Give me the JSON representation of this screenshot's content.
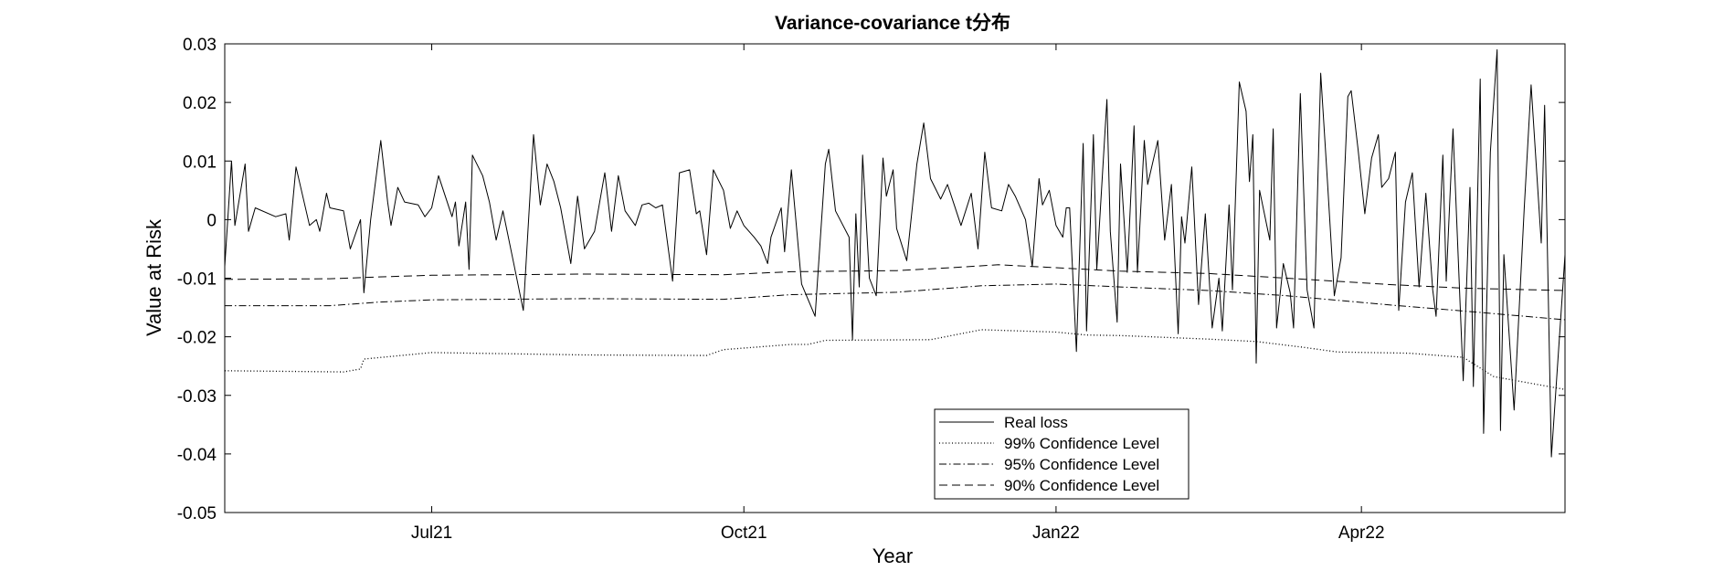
{
  "chart_data": {
    "type": "line",
    "title": "Variance-covariance t分布",
    "xlabel": "Year",
    "ylabel": "Value at Risk",
    "x_range": [
      "2021-05-01",
      "2022-05-31"
    ],
    "xticks": [
      {
        "date": "2021-07-01",
        "label": "Jul21"
      },
      {
        "date": "2021-10-01",
        "label": "Oct21"
      },
      {
        "date": "2022-01-01",
        "label": "Jan22"
      },
      {
        "date": "2022-04-01",
        "label": "Apr22"
      }
    ],
    "ylim": [
      -0.05,
      0.03
    ],
    "yticks": [
      {
        "value": 0.03,
        "label": "0.03"
      },
      {
        "value": 0.02,
        "label": "0.02"
      },
      {
        "value": 0.01,
        "label": "0.01"
      },
      {
        "value": 0,
        "label": "0"
      },
      {
        "value": -0.01,
        "label": "-0.01"
      },
      {
        "value": -0.02,
        "label": "-0.02"
      },
      {
        "value": -0.03,
        "label": "-0.03"
      },
      {
        "value": -0.04,
        "label": "-0.04"
      },
      {
        "value": -0.05,
        "label": "-0.05"
      }
    ],
    "grid": false,
    "legend_position": "bottom-center",
    "colors": {
      "line": "#000000",
      "axis": "#000000",
      "background": "#ffffff"
    },
    "series": [
      {
        "name": "Real loss",
        "style": "solid",
        "points": [
          [
            "2021-05-01",
            -0.008
          ],
          [
            "2021-05-03",
            0.01
          ],
          [
            "2021-05-04",
            -0.001
          ],
          [
            "2021-05-07",
            0.0095
          ],
          [
            "2021-05-08",
            -0.002
          ],
          [
            "2021-05-10",
            0.002
          ],
          [
            "2021-05-16",
            0.0005
          ],
          [
            "2021-05-19",
            0.001
          ],
          [
            "2021-05-20",
            -0.0035
          ],
          [
            "2021-05-22",
            0.009
          ],
          [
            "2021-05-26",
            -0.001
          ],
          [
            "2021-05-28",
            0.0
          ],
          [
            "2021-05-29",
            -0.002
          ],
          [
            "2021-05-31",
            0.0045
          ],
          [
            "2021-06-01",
            0.002
          ],
          [
            "2021-06-05",
            0.0015
          ],
          [
            "2021-06-07",
            -0.005
          ],
          [
            "2021-06-10",
            0.0
          ],
          [
            "2021-06-11",
            -0.0125
          ],
          [
            "2021-06-13",
            0.0
          ],
          [
            "2021-06-16",
            0.0135
          ],
          [
            "2021-06-18",
            0.003
          ],
          [
            "2021-06-19",
            -0.001
          ],
          [
            "2021-06-21",
            0.0055
          ],
          [
            "2021-06-23",
            0.003
          ],
          [
            "2021-06-27",
            0.0025
          ],
          [
            "2021-06-29",
            0.0005
          ],
          [
            "2021-07-01",
            0.002
          ],
          [
            "2021-07-03",
            0.0075
          ],
          [
            "2021-07-07",
            0.0005
          ],
          [
            "2021-07-08",
            0.003
          ],
          [
            "2021-07-09",
            -0.0045
          ],
          [
            "2021-07-11",
            0.003
          ],
          [
            "2021-07-12",
            -0.0085
          ],
          [
            "2021-07-13",
            0.011
          ],
          [
            "2021-07-16",
            0.0075
          ],
          [
            "2021-07-18",
            0.003
          ],
          [
            "2021-07-20",
            -0.0035
          ],
          [
            "2021-07-22",
            0.0015
          ],
          [
            "2021-07-25",
            -0.007
          ],
          [
            "2021-07-28",
            -0.0155
          ],
          [
            "2021-07-31",
            0.0145
          ],
          [
            "2021-08-02",
            0.0025
          ],
          [
            "2021-08-04",
            0.0095
          ],
          [
            "2021-08-06",
            0.0065
          ],
          [
            "2021-08-08",
            0.002
          ],
          [
            "2021-08-11",
            -0.0075
          ],
          [
            "2021-08-13",
            0.004
          ],
          [
            "2021-08-15",
            -0.005
          ],
          [
            "2021-08-18",
            -0.002
          ],
          [
            "2021-08-21",
            0.008
          ],
          [
            "2021-08-23",
            -0.002
          ],
          [
            "2021-08-25",
            0.0075
          ],
          [
            "2021-08-27",
            0.0015
          ],
          [
            "2021-08-30",
            -0.001
          ],
          [
            "2021-09-01",
            0.0025
          ],
          [
            "2021-09-03",
            0.0028
          ],
          [
            "2021-09-05",
            0.002
          ],
          [
            "2021-09-07",
            0.0025
          ],
          [
            "2021-09-10",
            -0.0105
          ],
          [
            "2021-09-12",
            0.008
          ],
          [
            "2021-09-15",
            0.0085
          ],
          [
            "2021-09-17",
            0.001
          ],
          [
            "2021-09-18",
            0.0015
          ],
          [
            "2021-09-20",
            -0.006
          ],
          [
            "2021-09-22",
            0.0085
          ],
          [
            "2021-09-25",
            0.005
          ],
          [
            "2021-09-27",
            -0.0015
          ],
          [
            "2021-09-29",
            0.0015
          ],
          [
            "2021-10-01",
            -0.001
          ],
          [
            "2021-10-04",
            -0.003
          ],
          [
            "2021-10-06",
            -0.0045
          ],
          [
            "2021-10-08",
            -0.0075
          ],
          [
            "2021-10-09",
            -0.003
          ],
          [
            "2021-10-12",
            0.002
          ],
          [
            "2021-10-13",
            -0.0055
          ],
          [
            "2021-10-15",
            0.0085
          ],
          [
            "2021-10-18",
            -0.011
          ],
          [
            "2021-10-22",
            -0.0165
          ],
          [
            "2021-10-25",
            0.0095
          ],
          [
            "2021-10-26",
            0.012
          ],
          [
            "2021-10-28",
            0.0015
          ],
          [
            "2021-11-01",
            -0.003
          ],
          [
            "2021-11-02",
            -0.0205
          ],
          [
            "2021-11-03",
            0.001
          ],
          [
            "2021-11-04",
            -0.0115
          ],
          [
            "2021-11-05",
            0.011
          ],
          [
            "2021-11-07",
            -0.01
          ],
          [
            "2021-11-09",
            -0.013
          ],
          [
            "2021-11-11",
            0.0105
          ],
          [
            "2021-11-12",
            0.004
          ],
          [
            "2021-11-14",
            0.0085
          ],
          [
            "2021-11-15",
            -0.0015
          ],
          [
            "2021-11-18",
            -0.007
          ],
          [
            "2021-11-21",
            0.0095
          ],
          [
            "2021-11-23",
            0.0165
          ],
          [
            "2021-11-25",
            0.007
          ],
          [
            "2021-11-28",
            0.0035
          ],
          [
            "2021-11-30",
            0.006
          ],
          [
            "2021-12-02",
            0.0025
          ],
          [
            "2021-12-04",
            -0.001
          ],
          [
            "2021-12-07",
            0.0045
          ],
          [
            "2021-12-09",
            -0.005
          ],
          [
            "2021-12-11",
            0.0115
          ],
          [
            "2021-12-13",
            0.002
          ],
          [
            "2021-12-16",
            0.0015
          ],
          [
            "2021-12-18",
            0.006
          ],
          [
            "2021-12-20",
            0.004
          ],
          [
            "2021-12-23",
            0.0
          ],
          [
            "2021-12-25",
            -0.008
          ],
          [
            "2021-12-27",
            0.007
          ],
          [
            "2021-12-28",
            0.0025
          ],
          [
            "2021-12-30",
            0.005
          ],
          [
            "2022-01-01",
            -0.001
          ],
          [
            "2022-01-03",
            -0.003
          ],
          [
            "2022-01-04",
            0.002
          ],
          [
            "2022-01-05",
            0.002
          ],
          [
            "2022-01-07",
            -0.0225
          ],
          [
            "2022-01-09",
            0.013
          ],
          [
            "2022-01-10",
            -0.019
          ],
          [
            "2022-01-12",
            0.0145
          ],
          [
            "2022-01-13",
            -0.0085
          ],
          [
            "2022-01-16",
            0.0205
          ],
          [
            "2022-01-17",
            -0.002
          ],
          [
            "2022-01-19",
            -0.0175
          ],
          [
            "2022-01-20",
            0.0095
          ],
          [
            "2022-01-22",
            -0.009
          ],
          [
            "2022-01-24",
            0.016
          ],
          [
            "2022-01-25",
            -0.009
          ],
          [
            "2022-01-27",
            0.0135
          ],
          [
            "2022-01-28",
            0.006
          ],
          [
            "2022-01-31",
            0.0135
          ],
          [
            "2022-02-02",
            -0.0035
          ],
          [
            "2022-02-04",
            0.006
          ],
          [
            "2022-02-06",
            -0.0195
          ],
          [
            "2022-02-07",
            0.0005
          ],
          [
            "2022-02-08",
            -0.004
          ],
          [
            "2022-02-10",
            0.009
          ],
          [
            "2022-02-12",
            -0.0145
          ],
          [
            "2022-02-14",
            0.001
          ],
          [
            "2022-02-16",
            -0.0185
          ],
          [
            "2022-02-18",
            -0.01
          ],
          [
            "2022-02-19",
            -0.019
          ],
          [
            "2022-02-21",
            0.0025
          ],
          [
            "2022-02-22",
            -0.012
          ],
          [
            "2022-02-24",
            0.0235
          ],
          [
            "2022-02-26",
            0.0185
          ],
          [
            "2022-02-27",
            0.0065
          ],
          [
            "2022-02-28",
            0.0145
          ],
          [
            "2022-03-01",
            -0.0245
          ],
          [
            "2022-03-02",
            0.005
          ],
          [
            "2022-03-05",
            -0.0035
          ],
          [
            "2022-03-06",
            0.0155
          ],
          [
            "2022-03-07",
            -0.0185
          ],
          [
            "2022-03-09",
            -0.0075
          ],
          [
            "2022-03-11",
            -0.0125
          ],
          [
            "2022-03-12",
            -0.0185
          ],
          [
            "2022-03-14",
            0.0215
          ],
          [
            "2022-03-16",
            -0.012
          ],
          [
            "2022-03-18",
            -0.0185
          ],
          [
            "2022-03-20",
            0.025
          ],
          [
            "2022-03-22",
            0.0065
          ],
          [
            "2022-03-24",
            -0.013
          ],
          [
            "2022-03-26",
            -0.0065
          ],
          [
            "2022-03-28",
            0.021
          ],
          [
            "2022-03-29",
            0.022
          ],
          [
            "2022-03-31",
            0.012
          ],
          [
            "2022-04-02",
            0.001
          ],
          [
            "2022-04-04",
            0.0105
          ],
          [
            "2022-04-06",
            0.0145
          ],
          [
            "2022-04-07",
            0.0055
          ],
          [
            "2022-04-09",
            0.007
          ],
          [
            "2022-04-11",
            0.0115
          ],
          [
            "2022-04-12",
            -0.0155
          ],
          [
            "2022-04-14",
            0.003
          ],
          [
            "2022-04-16",
            0.008
          ],
          [
            "2022-04-18",
            -0.0115
          ],
          [
            "2022-04-20",
            0.0045
          ],
          [
            "2022-04-22",
            -0.012
          ],
          [
            "2022-04-23",
            -0.0165
          ],
          [
            "2022-04-25",
            0.011
          ],
          [
            "2022-04-26",
            -0.0105
          ],
          [
            "2022-04-28",
            0.0155
          ],
          [
            "2022-05-01",
            -0.0275
          ],
          [
            "2022-05-03",
            0.0055
          ],
          [
            "2022-05-04",
            -0.0285
          ],
          [
            "2022-05-06",
            0.024
          ],
          [
            "2022-05-07",
            -0.0365
          ],
          [
            "2022-05-09",
            0.0115
          ],
          [
            "2022-05-11",
            0.029
          ],
          [
            "2022-05-12",
            -0.036
          ],
          [
            "2022-05-13",
            -0.006
          ],
          [
            "2022-05-16",
            -0.0325
          ],
          [
            "2022-05-19",
            0.002
          ],
          [
            "2022-05-21",
            0.023
          ],
          [
            "2022-05-24",
            -0.004
          ],
          [
            "2022-05-25",
            0.0195
          ],
          [
            "2022-05-27",
            -0.0405
          ],
          [
            "2022-05-31",
            -0.006
          ]
        ]
      },
      {
        "name": "99% Confidence Level",
        "style": "dotted",
        "points": [
          [
            "2021-05-01",
            -0.0258
          ],
          [
            "2021-06-05",
            -0.026
          ],
          [
            "2021-06-10",
            -0.0255
          ],
          [
            "2021-06-11",
            -0.0238
          ],
          [
            "2021-07-01",
            -0.0227
          ],
          [
            "2021-08-15",
            -0.0231
          ],
          [
            "2021-09-20",
            -0.0232
          ],
          [
            "2021-09-25",
            -0.0222
          ],
          [
            "2021-10-15",
            -0.0213
          ],
          [
            "2021-10-20",
            -0.0213
          ],
          [
            "2021-10-25",
            -0.0206
          ],
          [
            "2021-11-25",
            -0.0205
          ],
          [
            "2021-12-10",
            -0.0188
          ],
          [
            "2022-01-01",
            -0.0192
          ],
          [
            "2022-01-10",
            -0.0197
          ],
          [
            "2022-01-20",
            -0.0198
          ],
          [
            "2022-02-15",
            -0.0204
          ],
          [
            "2022-03-01",
            -0.0208
          ],
          [
            "2022-03-15",
            -0.0218
          ],
          [
            "2022-03-25",
            -0.0226
          ],
          [
            "2022-04-15",
            -0.0228
          ],
          [
            "2022-05-01",
            -0.0235
          ],
          [
            "2022-05-10",
            -0.0268
          ],
          [
            "2022-05-31",
            -0.029
          ]
        ]
      },
      {
        "name": "95% Confidence Level",
        "style": "dashdot",
        "points": [
          [
            "2021-05-01",
            -0.0147
          ],
          [
            "2021-06-01",
            -0.0147
          ],
          [
            "2021-06-15",
            -0.0141
          ],
          [
            "2021-07-01",
            -0.0137
          ],
          [
            "2021-08-15",
            -0.0135
          ],
          [
            "2021-09-25",
            -0.0136
          ],
          [
            "2021-10-15",
            -0.0128
          ],
          [
            "2021-11-15",
            -0.0124
          ],
          [
            "2021-12-10",
            -0.0113
          ],
          [
            "2022-01-01",
            -0.011
          ],
          [
            "2022-01-20",
            -0.0115
          ],
          [
            "2022-02-15",
            -0.0121
          ],
          [
            "2022-03-10",
            -0.013
          ],
          [
            "2022-04-10",
            -0.0146
          ],
          [
            "2022-05-01",
            -0.0156
          ],
          [
            "2022-05-31",
            -0.0171
          ]
        ]
      },
      {
        "name": "90% Confidence Level",
        "style": "dashed",
        "points": [
          [
            "2021-05-01",
            -0.0102
          ],
          [
            "2021-06-01",
            -0.0101
          ],
          [
            "2021-06-15",
            -0.0098
          ],
          [
            "2021-07-01",
            -0.0095
          ],
          [
            "2021-08-15",
            -0.0093
          ],
          [
            "2021-09-25",
            -0.0094
          ],
          [
            "2021-10-15",
            -0.0089
          ],
          [
            "2021-11-15",
            -0.0087
          ],
          [
            "2021-12-01",
            -0.0082
          ],
          [
            "2021-12-15",
            -0.0077
          ],
          [
            "2022-01-01",
            -0.0082
          ],
          [
            "2022-01-20",
            -0.0088
          ],
          [
            "2022-02-15",
            -0.0092
          ],
          [
            "2022-03-10",
            -0.01
          ],
          [
            "2022-04-10",
            -0.0111
          ],
          [
            "2022-05-01",
            -0.0117
          ],
          [
            "2022-05-31",
            -0.0121
          ]
        ]
      }
    ]
  }
}
